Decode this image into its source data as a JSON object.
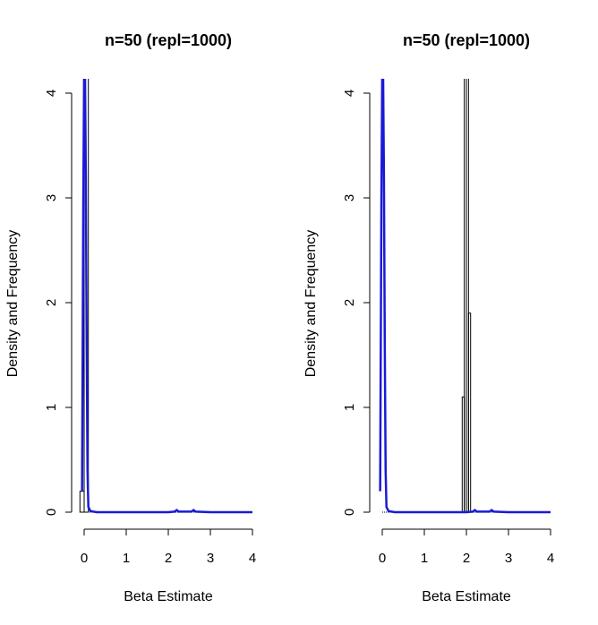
{
  "chart_data": [
    {
      "type": "bar",
      "title": "n=50 (repl=1000)",
      "xlabel": "Beta Estimate",
      "ylabel": "Density and Frequency",
      "xlim": [
        0,
        4
      ],
      "ylim": [
        0,
        4
      ],
      "xticks": [
        "0",
        "1",
        "2",
        "3",
        "4"
      ],
      "yticks": [
        "0",
        "1",
        "2",
        "3",
        "4"
      ],
      "bars": [
        {
          "x0": -0.1,
          "x1": 0.0,
          "value": 0.2
        },
        {
          "x0": 0.0,
          "x1": 0.1,
          "value": 4.2
        }
      ],
      "density_line": {
        "color": "#1a1ad6",
        "x": [
          -0.05,
          -0.02,
          0.0,
          0.02,
          0.04,
          0.06,
          0.08,
          0.1,
          0.15,
          0.3,
          1.0,
          2.0,
          2.15,
          2.2,
          2.25,
          2.55,
          2.6,
          2.65,
          3.0,
          4.0
        ],
        "y": [
          0.2,
          3.0,
          4.2,
          4.2,
          3.2,
          1.6,
          0.4,
          0.05,
          0.01,
          0.0,
          0.0,
          0.0,
          0.005,
          0.02,
          0.005,
          0.005,
          0.02,
          0.005,
          0.0,
          0.0
        ]
      }
    },
    {
      "type": "bar",
      "title": "n=50 (repl=1000)",
      "xlabel": "Beta Estimate",
      "ylabel": "Density and Frequency",
      "xlim": [
        0,
        4
      ],
      "ylim": [
        0,
        4
      ],
      "xticks": [
        "0",
        "1",
        "2",
        "3",
        "4"
      ],
      "yticks": [
        "0",
        "1",
        "2",
        "3",
        "4"
      ],
      "bars": [
        {
          "x0": 1.9,
          "x1": 1.95,
          "value": 1.1
        },
        {
          "x0": 1.95,
          "x1": 2.0,
          "value": 4.2
        },
        {
          "x0": 2.0,
          "x1": 2.05,
          "value": 4.2
        },
        {
          "x0": 2.05,
          "x1": 2.1,
          "value": 1.9
        }
      ],
      "density_line": {
        "color": "#1a1ad6",
        "x": [
          -0.05,
          -0.02,
          0.0,
          0.02,
          0.04,
          0.06,
          0.08,
          0.1,
          0.15,
          0.3,
          1.0,
          2.0,
          2.15,
          2.2,
          2.25,
          2.55,
          2.6,
          2.65,
          3.0,
          4.0
        ],
        "y": [
          0.2,
          3.0,
          4.2,
          4.2,
          3.2,
          1.6,
          0.4,
          0.05,
          0.01,
          0.0,
          0.0,
          0.0,
          0.005,
          0.02,
          0.005,
          0.005,
          0.02,
          0.005,
          0.0,
          0.0
        ]
      }
    }
  ]
}
